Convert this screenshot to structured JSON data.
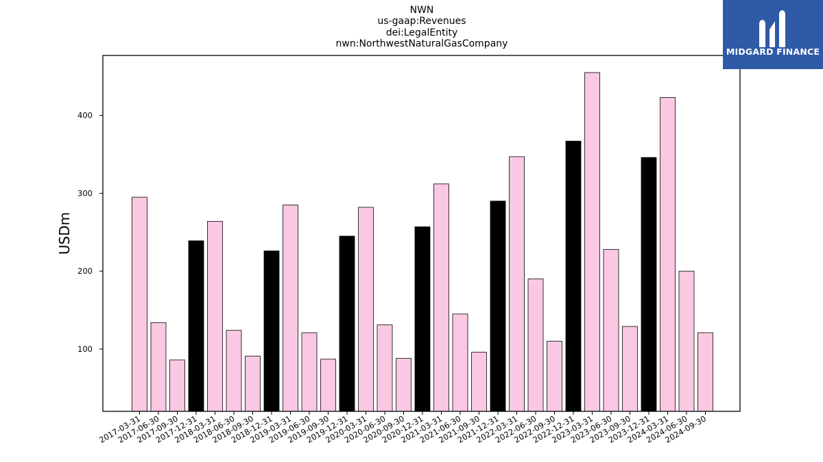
{
  "chart_data": {
    "type": "bar",
    "title_lines": [
      "NWN",
      "us-gaap:Revenues",
      "dei:LegalEntity",
      "nwn:NorthwestNaturalGasCompany"
    ],
    "xlabel": "",
    "ylabel": "USDm",
    "ylim": [
      20,
      477
    ],
    "yticks": [
      100,
      200,
      300,
      400
    ],
    "grid": false,
    "categories": [
      "2017-03-31",
      "2017-06-30",
      "2017-09-30",
      "2017-12-31",
      "2018-03-31",
      "2018-06-30",
      "2018-09-30",
      "2018-12-31",
      "2019-03-31",
      "2019-06-30",
      "2019-09-30",
      "2019-12-31",
      "2020-03-31",
      "2020-06-30",
      "2020-09-30",
      "2020-12-31",
      "2021-03-31",
      "2021-06-30",
      "2021-09-30",
      "2021-12-31",
      "2022-03-31",
      "2022-06-30",
      "2022-09-30",
      "2022-12-31",
      "2023-03-31",
      "2023-06-30",
      "2023-09-30",
      "2023-12-31",
      "2024-03-31",
      "2024-06-30",
      "2024-09-30"
    ],
    "values": [
      295,
      134,
      86,
      239,
      264,
      124,
      91,
      226,
      285,
      121,
      87,
      245,
      282,
      131,
      88,
      257,
      312,
      145,
      96,
      290,
      347,
      190,
      110,
      367,
      455,
      228,
      129,
      346,
      423,
      200,
      121
    ],
    "colors": {
      "quarter": "#fac8e2",
      "year_end": "#000000",
      "edge": "#000000"
    }
  },
  "logo": {
    "text": "MIDGARD FINANCE",
    "color": "#2f5aa8"
  }
}
